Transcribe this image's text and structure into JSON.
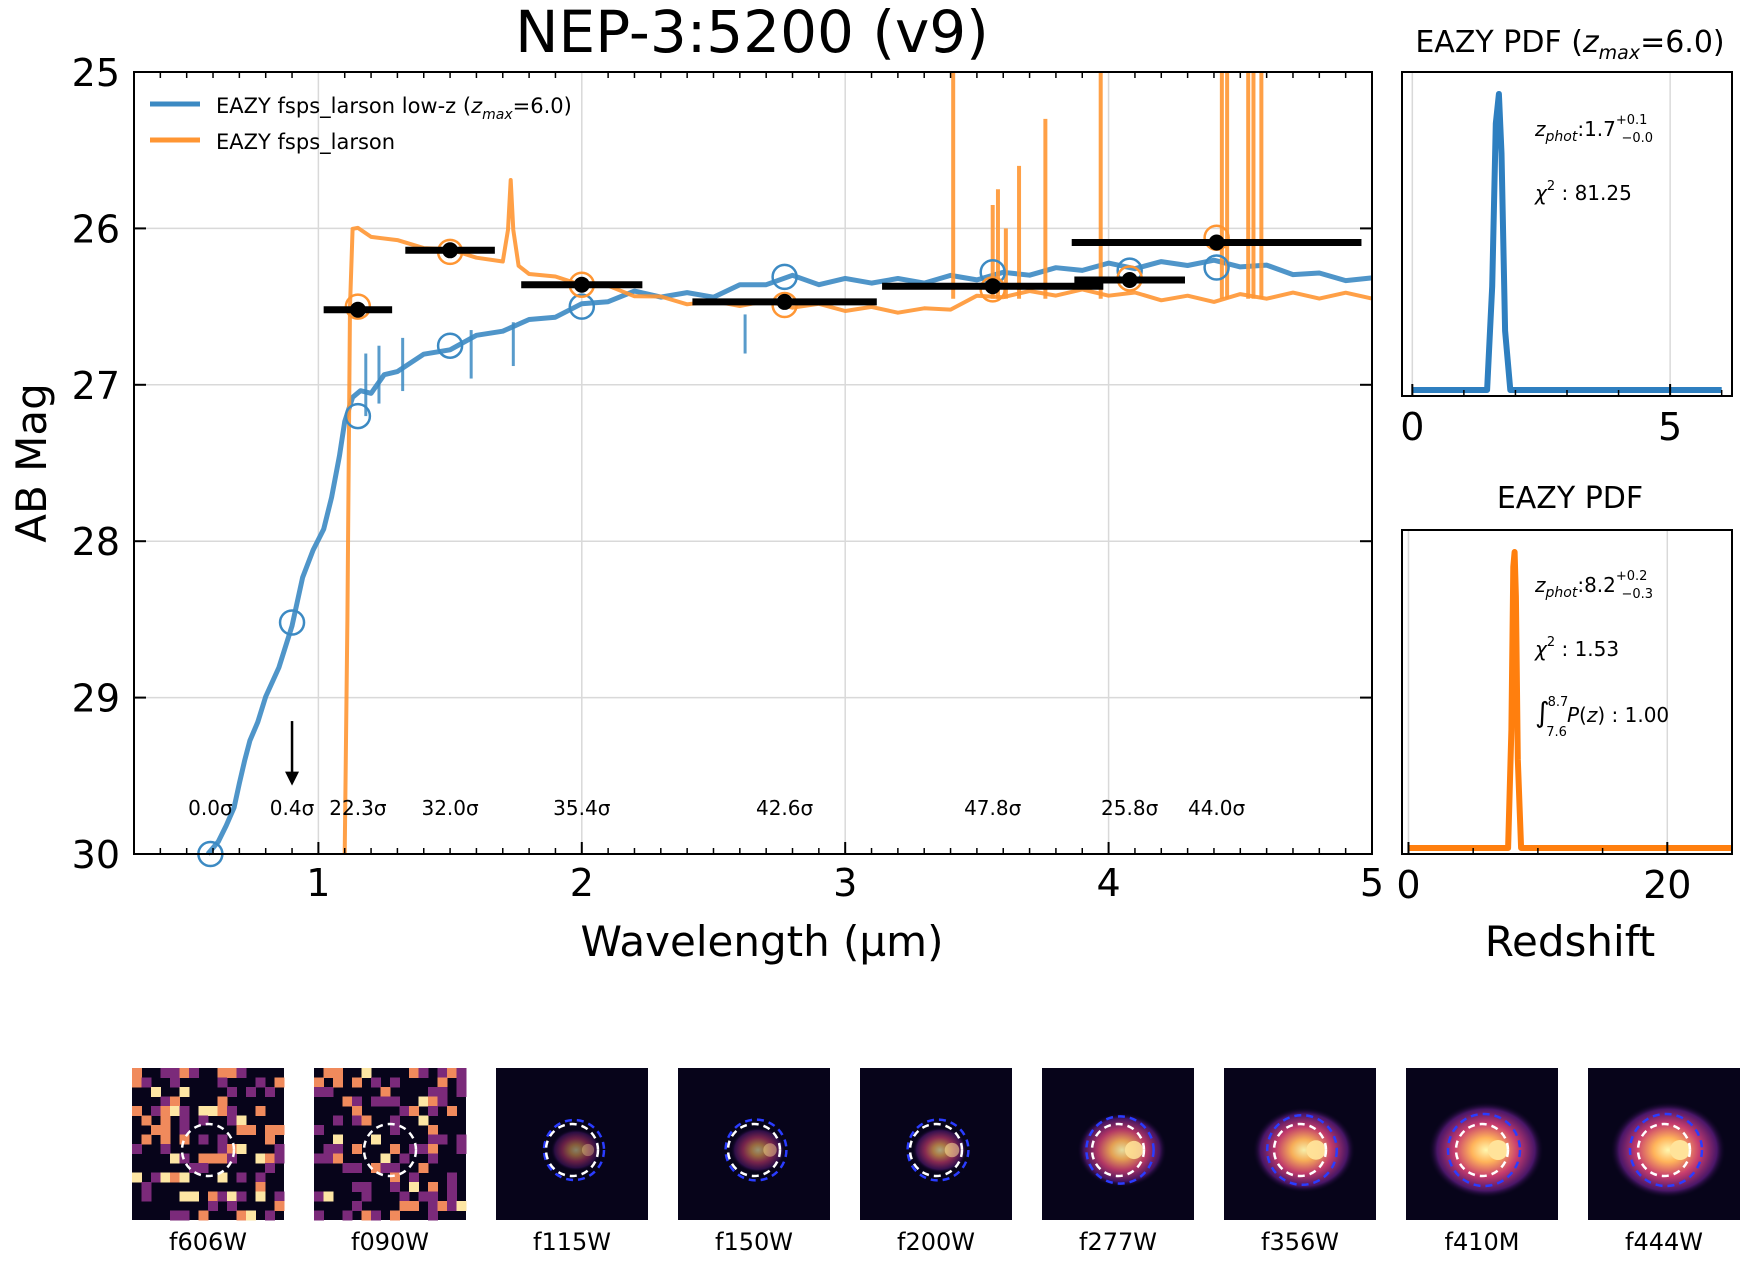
{
  "chart_data": [
    {
      "type": "line",
      "title": "NEP-3:5200 (v9)",
      "xlabel": "Wavelength (µm)",
      "ylabel": "AB Mag",
      "xlim": [
        0.3,
        5.0
      ],
      "ylim": [
        30,
        25
      ],
      "xticks": [
        "1",
        "2",
        "3",
        "4",
        "5"
      ],
      "yticks": [
        "25",
        "26",
        "27",
        "28",
        "29",
        "30"
      ],
      "grid": true,
      "legend_position": "top-left",
      "legend": [
        {
          "label": "EAZY fsps_larson low-z (",
          "zsub": "max",
          "suffix": "=6.0)",
          "color": "#3c8ac3"
        },
        {
          "label": "EAZY fsps_larson",
          "color": "#ff9633"
        }
      ],
      "series": [
        {
          "name": "EAZY fsps_larson low-z (zmax=6.0)",
          "color": "#3c8ac3",
          "x": [
            0.58,
            0.62,
            0.65,
            0.68,
            0.7,
            0.72,
            0.74,
            0.77,
            0.8,
            0.85,
            0.9,
            0.94,
            0.98,
            1.02,
            1.05,
            1.08,
            1.1,
            1.13,
            1.16,
            1.2,
            1.25,
            1.3,
            1.4,
            1.5,
            1.6,
            1.7,
            1.8,
            1.9,
            2.0,
            2.1,
            2.2,
            2.3,
            2.4,
            2.5,
            2.6,
            2.7,
            2.8,
            2.9,
            3.0,
            3.1,
            3.2,
            3.3,
            3.4,
            3.5,
            3.6,
            3.7,
            3.8,
            3.9,
            4.0,
            4.1,
            4.2,
            4.3,
            4.4,
            4.5,
            4.6,
            4.7,
            4.8,
            4.9,
            5.0
          ],
          "y": [
            30.0,
            29.92,
            29.82,
            29.7,
            29.55,
            29.4,
            29.28,
            29.15,
            29.0,
            28.8,
            28.55,
            28.35,
            28.1,
            27.85,
            27.6,
            27.4,
            27.3,
            27.2,
            27.1,
            27.0,
            26.95,
            26.9,
            26.82,
            26.76,
            26.7,
            26.64,
            26.6,
            26.55,
            26.5,
            26.45,
            26.42,
            26.42,
            26.43,
            26.42,
            26.38,
            26.34,
            26.32,
            26.34,
            26.34,
            26.33,
            26.34,
            26.33,
            26.32,
            26.31,
            26.3,
            26.28,
            26.27,
            26.25,
            26.24,
            26.24,
            26.23,
            26.22,
            26.22,
            26.23,
            26.25,
            26.28,
            26.3,
            26.32,
            26.33
          ]
        },
        {
          "name": "EAZY fsps_larson",
          "color": "#ff9633",
          "x": [
            1.1,
            1.11,
            1.12,
            1.13,
            1.15,
            1.2,
            1.3,
            1.4,
            1.5,
            1.6,
            1.7,
            1.72,
            1.73,
            1.74,
            1.76,
            1.8,
            1.9,
            2.0,
            2.1,
            2.2,
            2.3,
            2.4,
            2.5,
            2.6,
            2.7,
            2.8,
            2.9,
            3.0,
            3.1,
            3.2,
            3.3,
            3.4,
            3.5,
            3.6,
            3.7,
            3.8,
            3.9,
            4.0,
            4.1,
            4.2,
            4.3,
            4.4,
            4.5,
            4.6,
            4.7,
            4.8,
            4.9,
            5.0
          ],
          "y": [
            30.0,
            28.5,
            26.5,
            26.0,
            26.0,
            26.05,
            26.08,
            26.12,
            26.14,
            26.18,
            26.22,
            26.0,
            25.7,
            26.0,
            26.25,
            26.28,
            26.32,
            26.35,
            26.38,
            26.42,
            26.45,
            26.47,
            26.48,
            26.48,
            26.48,
            26.49,
            26.5,
            26.51,
            26.52,
            26.52,
            26.53,
            26.5,
            26.45,
            26.42,
            26.42,
            26.41,
            26.41,
            26.41,
            26.43,
            26.44,
            26.45,
            26.45,
            26.44,
            26.43,
            26.43,
            26.43,
            26.43,
            26.43
          ]
        }
      ],
      "emission_spikes": [
        {
          "x": 3.41,
          "top": 25.0
        },
        {
          "x": 3.56,
          "top": 25.85
        },
        {
          "x": 3.58,
          "top": 25.75
        },
        {
          "x": 3.61,
          "top": 26.0
        },
        {
          "x": 3.66,
          "top": 25.6
        },
        {
          "x": 3.76,
          "top": 25.3
        },
        {
          "x": 3.97,
          "top": 25.0
        },
        {
          "x": 4.43,
          "top": 25.0
        },
        {
          "x": 4.45,
          "top": 25.0
        },
        {
          "x": 4.53,
          "top": 25.0
        },
        {
          "x": 4.55,
          "top": 25.0
        },
        {
          "x": 4.58,
          "top": 25.0
        }
      ],
      "photometry": [
        {
          "x": 1.15,
          "xerr": 0.13,
          "y": 26.52
        },
        {
          "x": 1.5,
          "xerr": 0.17,
          "y": 26.14
        },
        {
          "x": 2.0,
          "xerr": 0.23,
          "y": 26.36
        },
        {
          "x": 2.77,
          "xerr": 0.35,
          "y": 26.47
        },
        {
          "x": 3.56,
          "xerr": 0.42,
          "y": 26.37
        },
        {
          "x": 4.08,
          "xerr": 0.21,
          "y": 26.33
        },
        {
          "x": 4.41,
          "xerr": 0.55,
          "y": 26.09
        }
      ],
      "upper_limits": [
        {
          "x": 0.9,
          "y_from": 29.15,
          "y_to": 29.55
        }
      ],
      "model_photometry_lowz": [
        {
          "x": 0.59,
          "y": 30.0
        },
        {
          "x": 0.9,
          "y": 28.52
        },
        {
          "x": 1.15,
          "y": 27.2
        },
        {
          "x": 1.5,
          "y": 26.75
        },
        {
          "x": 2.0,
          "y": 26.5
        },
        {
          "x": 2.77,
          "y": 26.31
        },
        {
          "x": 3.56,
          "y": 26.28
        },
        {
          "x": 4.08,
          "y": 26.27
        },
        {
          "x": 4.41,
          "y": 26.25
        }
      ],
      "model_photometry_highz": [
        {
          "x": 1.15,
          "y": 26.5
        },
        {
          "x": 1.5,
          "y": 26.15
        },
        {
          "x": 2.0,
          "y": 26.36
        },
        {
          "x": 2.77,
          "y": 26.49
        },
        {
          "x": 3.56,
          "y": 26.39
        },
        {
          "x": 4.08,
          "y": 26.32
        },
        {
          "x": 4.41,
          "y": 26.06
        }
      ],
      "snr_labels": [
        {
          "x": 0.59,
          "text": "0.0σ"
        },
        {
          "x": 0.9,
          "text": "0.4σ"
        },
        {
          "x": 1.15,
          "text": "22.3σ"
        },
        {
          "x": 1.5,
          "text": "32.0σ"
        },
        {
          "x": 2.0,
          "text": "35.4σ"
        },
        {
          "x": 2.77,
          "text": "42.6σ"
        },
        {
          "x": 3.56,
          "text": "47.8σ"
        },
        {
          "x": 4.08,
          "text": "25.8σ"
        },
        {
          "x": 4.41,
          "text": "44.0σ"
        }
      ]
    },
    {
      "type": "line",
      "title_prefix": "EAZY PDF (",
      "title_zsub": "max",
      "title_suffix": "=6.0)",
      "xlim": [
        -0.2,
        6.2
      ],
      "xticks": [
        "0",
        "5"
      ],
      "color": "#2e7fc0",
      "peak_z": 1.7,
      "x": [
        0.0,
        1.45,
        1.55,
        1.62,
        1.68,
        1.73,
        1.8,
        1.9,
        6.0
      ],
      "y": [
        0.0,
        0.0,
        0.35,
        0.9,
        1.0,
        0.8,
        0.2,
        0.0,
        0.0
      ],
      "zphot_value": "1.7",
      "zphot_up": "+0.1",
      "zphot_down": "−0.0",
      "chi2": "81.25"
    },
    {
      "type": "line",
      "title": "EAZY PDF",
      "xlabel": "Redshift",
      "xlim": [
        -0.5,
        25.0
      ],
      "xticks": [
        "0",
        "20"
      ],
      "color": "#ff7f0e",
      "peak_z": 8.2,
      "x": [
        0.0,
        7.7,
        7.95,
        8.1,
        8.2,
        8.3,
        8.45,
        8.7,
        25.0
      ],
      "y": [
        0.0,
        0.0,
        0.4,
        0.95,
        1.0,
        0.85,
        0.3,
        0.0,
        0.0
      ],
      "zphot_value": "8.2",
      "zphot_up": "+0.2",
      "zphot_down": "−0.3",
      "chi2": "1.53",
      "int_upper": "8.7",
      "int_lower": "7.6",
      "int_value": "1.00"
    }
  ],
  "cutouts": [
    {
      "band": "f606W",
      "noise": true,
      "peak": 0.0,
      "extent": 0.0,
      "blue": false
    },
    {
      "band": "f090W",
      "noise": true,
      "peak": 0.0,
      "extent": 0.0,
      "blue": false
    },
    {
      "band": "f115W",
      "noise": false,
      "peak": 0.35,
      "extent": 0.25,
      "blue": true
    },
    {
      "band": "f150W",
      "noise": false,
      "peak": 0.45,
      "extent": 0.3,
      "blue": true
    },
    {
      "band": "f200W",
      "noise": false,
      "peak": 0.55,
      "extent": 0.3,
      "blue": true
    },
    {
      "band": "f277W",
      "noise": false,
      "peak": 0.85,
      "extent": 0.7,
      "blue": true
    },
    {
      "band": "f356W",
      "noise": false,
      "peak": 0.95,
      "extent": 0.85,
      "blue": true
    },
    {
      "band": "f410M",
      "noise": false,
      "peak": 1.0,
      "extent": 1.0,
      "blue": true
    },
    {
      "band": "f444W",
      "noise": false,
      "peak": 1.0,
      "extent": 1.0,
      "blue": true
    }
  ],
  "colors": {
    "lowz": "#3c8ac3",
    "highz": "#ff9633",
    "pdf_lowz": "#2e7fc0",
    "pdf_highz": "#ff7f0e",
    "grid": "#d9d9d9",
    "phot": "#000000"
  }
}
